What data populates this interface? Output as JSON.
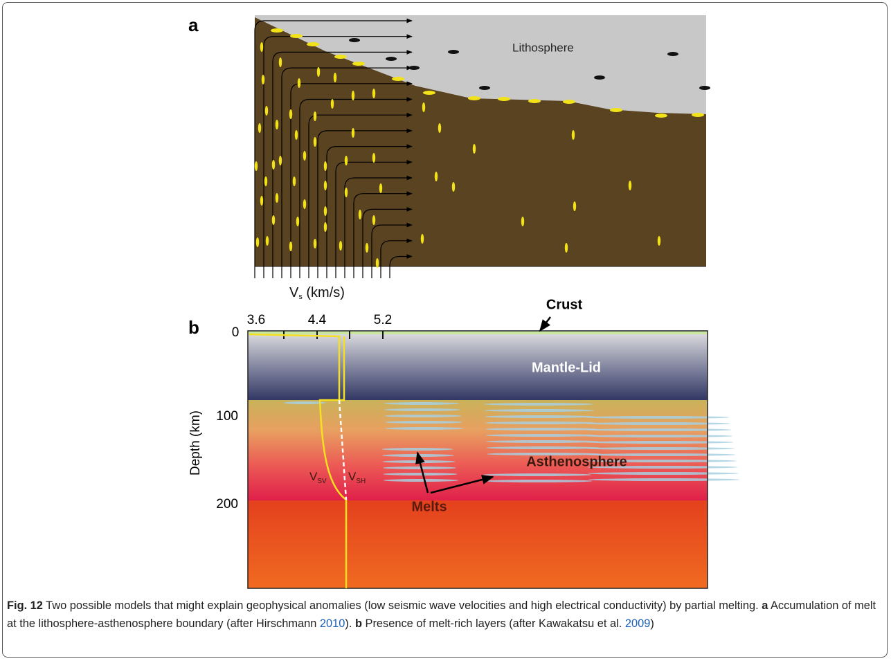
{
  "panel_a": {
    "label": "a",
    "region_label": "Lithosphere",
    "axis_label": {
      "main": "V",
      "sub": "s",
      "unit": " (km/s)"
    }
  },
  "panel_b": {
    "label": "b",
    "top_ticks": [
      "3.6",
      "4.4",
      "5.2"
    ],
    "depth_ticks": [
      "0",
      "100",
      "200"
    ],
    "depth_label": "Depth (km)",
    "layers": {
      "crust": "Crust",
      "mantle_lid": "Mantle-Lid",
      "asthenosphere": "Asthenosphere"
    },
    "melts": "Melts",
    "curves": [
      {
        "main": "V",
        "sub": "SV"
      },
      {
        "main": "V",
        "sub": "SH"
      }
    ]
  },
  "caption": {
    "figure": "Fig. 12",
    "text1": " Two possible models that might explain geophysical anomalies (low seismic wave velocities and high electrical conductivity) by partial melting. ",
    "a_label": "a",
    "text_a": " Accumulation of melt at the lithosphere-asthenosphere boundary (after Hirschmann ",
    "ref_a": "2010",
    "text_a_end": "). ",
    "b_label": "b",
    "text_b": " Presence of melt-rich layers (after Kawakatsu et al. ",
    "ref_b": "2009",
    "text_b_end": ")"
  }
}
